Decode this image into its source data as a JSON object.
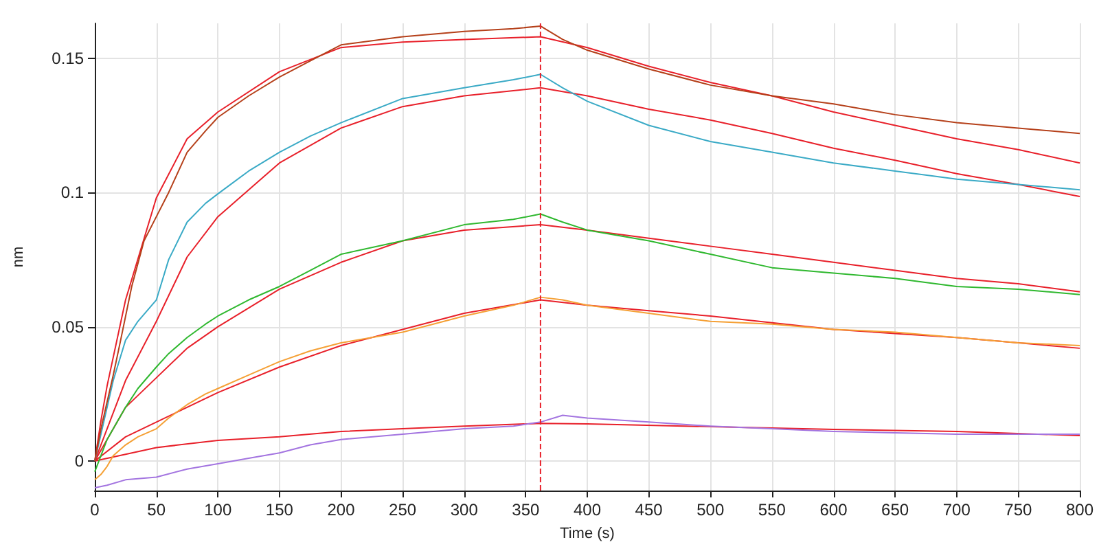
{
  "chart_data": {
    "type": "line",
    "xlabel": "Time (s)",
    "ylabel": "nm",
    "xlim": [
      0,
      800
    ],
    "xticks": [
      0,
      50,
      100,
      150,
      200,
      250,
      300,
      350,
      400,
      450,
      500,
      550,
      600,
      650,
      700,
      750,
      800
    ],
    "ylim": [
      -0.011,
      0.163
    ],
    "yticks": [
      0,
      0.05,
      0.1,
      0.15
    ],
    "grid": true,
    "marker": "none",
    "line_style": "solid",
    "ref_lines": [
      {
        "axis": "x",
        "value": 362,
        "color": "#e8202a",
        "line_style": "dashed"
      }
    ],
    "series": [
      {
        "color": "#b5401a",
        "x": [
          0,
          5,
          10,
          15,
          21,
          30,
          40,
          50,
          60,
          75,
          90,
          100,
          125,
          150,
          175,
          200,
          250,
          300,
          340,
          362,
          380,
          400,
          450,
          500,
          550,
          600,
          650,
          700,
          750,
          800
        ],
        "values": [
          0,
          0.012,
          0.022,
          0.032,
          0.045,
          0.065,
          0.082,
          0.091,
          0.1,
          0.115,
          0.123,
          0.128,
          0.136,
          0.143,
          0.149,
          0.155,
          0.158,
          0.16,
          0.161,
          0.162,
          0.157,
          0.153,
          0.146,
          0.14,
          0.136,
          0.133,
          0.129,
          0.126,
          0.124,
          0.122
        ]
      },
      {
        "color": "#3aaac6",
        "x": [
          0,
          5,
          10,
          15,
          25,
          35,
          50,
          60,
          75,
          90,
          100,
          125,
          150,
          175,
          200,
          250,
          300,
          340,
          362,
          380,
          400,
          450,
          500,
          550,
          600,
          650,
          700,
          750,
          800
        ],
        "values": [
          0,
          0.01,
          0.02,
          0.03,
          0.045,
          0.052,
          0.06,
          0.075,
          0.089,
          0.096,
          0.0995,
          0.108,
          0.115,
          0.121,
          0.126,
          0.135,
          0.139,
          0.142,
          0.144,
          0.139,
          0.134,
          0.125,
          0.119,
          0.115,
          0.111,
          0.108,
          0.105,
          0.103,
          0.101
        ]
      },
      {
        "color": "#2fb82f",
        "x": [
          0,
          5,
          10,
          15,
          25,
          35,
          50,
          60,
          75,
          90,
          100,
          125,
          150,
          175,
          200,
          250,
          300,
          340,
          362,
          380,
          400,
          450,
          500,
          550,
          600,
          650,
          700,
          750,
          800
        ],
        "values": [
          -0.004,
          0.002,
          0.008,
          0.012,
          0.02,
          0.027,
          0.035,
          0.04,
          0.046,
          0.051,
          0.054,
          0.06,
          0.065,
          0.071,
          0.077,
          0.082,
          0.088,
          0.09,
          0.092,
          0.089,
          0.086,
          0.082,
          0.077,
          0.072,
          0.07,
          0.068,
          0.065,
          0.064,
          0.062
        ]
      },
      {
        "color": "#f5a035",
        "x": [
          0,
          5,
          10,
          15,
          25,
          35,
          50,
          60,
          75,
          90,
          100,
          125,
          150,
          175,
          200,
          250,
          300,
          340,
          362,
          380,
          400,
          450,
          500,
          550,
          600,
          650,
          700,
          750,
          800
        ],
        "values": [
          -0.007,
          -0.005,
          -0.002,
          0.002,
          0.006,
          0.009,
          0.012,
          0.016,
          0.021,
          0.025,
          0.027,
          0.032,
          0.037,
          0.041,
          0.044,
          0.048,
          0.054,
          0.058,
          0.061,
          0.06,
          0.058,
          0.055,
          0.052,
          0.051,
          0.049,
          0.048,
          0.046,
          0.044,
          0.043
        ]
      },
      {
        "color": "#a374e0",
        "x": [
          0,
          10,
          25,
          50,
          75,
          100,
          125,
          150,
          175,
          200,
          250,
          300,
          340,
          362,
          380,
          400,
          450,
          500,
          550,
          600,
          650,
          700,
          750,
          800
        ],
        "values": [
          -0.01,
          -0.009,
          -0.007,
          -0.006,
          -0.003,
          -0.001,
          0.001,
          0.003,
          0.006,
          0.008,
          0.01,
          0.012,
          0.013,
          0.0145,
          0.017,
          0.016,
          0.0145,
          0.013,
          0.012,
          0.011,
          0.0105,
          0.01,
          0.01,
          0.01
        ]
      },
      {
        "color": "#e8202a",
        "x": [
          0,
          5,
          10,
          25,
          50,
          75,
          100,
          150,
          200,
          250,
          300,
          362,
          400,
          450,
          500,
          550,
          600,
          650,
          700,
          750,
          800
        ],
        "values": [
          0,
          0.015,
          0.028,
          0.06,
          0.098,
          0.12,
          0.13,
          0.145,
          0.154,
          0.156,
          0.157,
          0.158,
          0.154,
          0.147,
          0.141,
          0.136,
          0.13,
          0.125,
          0.12,
          0.116,
          0.111
        ]
      },
      {
        "color": "#e8202a",
        "x": [
          0,
          10,
          25,
          50,
          75,
          100,
          150,
          200,
          250,
          300,
          362,
          400,
          450,
          500,
          550,
          600,
          650,
          700,
          750,
          800
        ],
        "values": [
          0,
          0.012,
          0.03,
          0.052,
          0.076,
          0.091,
          0.111,
          0.124,
          0.132,
          0.136,
          0.139,
          0.136,
          0.131,
          0.127,
          0.122,
          0.1165,
          0.112,
          0.107,
          0.103,
          0.0985
        ]
      },
      {
        "color": "#e8202a",
        "x": [
          0,
          25,
          50,
          75,
          100,
          150,
          200,
          250,
          300,
          362,
          400,
          450,
          500,
          550,
          600,
          650,
          700,
          750,
          800
        ],
        "values": [
          0,
          0.02,
          0.031,
          0.042,
          0.05,
          0.064,
          0.074,
          0.082,
          0.086,
          0.088,
          0.086,
          0.083,
          0.08,
          0.077,
          0.074,
          0.071,
          0.068,
          0.066,
          0.063
        ]
      },
      {
        "color": "#e8202a",
        "x": [
          0,
          25,
          50,
          100,
          150,
          200,
          250,
          300,
          362,
          400,
          450,
          500,
          550,
          600,
          650,
          700,
          750,
          800
        ],
        "values": [
          0,
          0.009,
          0.0145,
          0.0255,
          0.035,
          0.043,
          0.049,
          0.055,
          0.06,
          0.058,
          0.056,
          0.054,
          0.0515,
          0.049,
          0.0475,
          0.046,
          0.044,
          0.042
        ]
      },
      {
        "color": "#e8202a",
        "x": [
          0,
          50,
          100,
          150,
          200,
          250,
          300,
          362,
          400,
          500,
          600,
          700,
          800
        ],
        "values": [
          0,
          0.005,
          0.0077,
          0.009,
          0.011,
          0.012,
          0.013,
          0.014,
          0.0138,
          0.0128,
          0.0118,
          0.011,
          0.0095
        ]
      }
    ]
  }
}
